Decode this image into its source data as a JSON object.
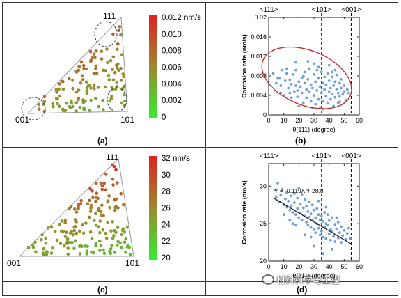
{
  "panels": {
    "a": {
      "caption": "(a)",
      "corners": {
        "top": "111",
        "left": "001",
        "right": "101"
      },
      "colorbar": {
        "unit": "nm/s",
        "ticks": [
          "0.012",
          "0.010",
          "0.008",
          "0.006",
          "0.004",
          "0.002",
          "0"
        ],
        "top_label": "0.012 nm/s"
      }
    },
    "b": {
      "caption": "(b)",
      "top_labels": [
        "<111>",
        "<101>",
        "<001>"
      ]
    },
    "c": {
      "caption": "(c)",
      "corners": {
        "top": "111",
        "left": "001",
        "right": "101"
      },
      "colorbar": {
        "unit": "nm/s",
        "ticks": [
          "32",
          "30",
          "28",
          "26",
          "24",
          "22",
          "20"
        ],
        "top_label": "32 nm/s"
      }
    },
    "d": {
      "caption": "(d)",
      "top_labels": [
        "<111>",
        "<101>",
        "<001>"
      ],
      "annotation": "Y = -0.119X + 28.8"
    }
  },
  "watermark": "材料科学与工程",
  "colors": {
    "low": "#33dd33",
    "high": "#dd2222",
    "point": "#6f9fd8",
    "ellipse": "#cc2222",
    "fit_line": "#111111"
  },
  "chart_data": [
    {
      "type": "scatter",
      "title": "",
      "xlabel": "θ(111) (degree)",
      "ylabel": "Corrosion rate (nm/s)",
      "xlim": [
        0,
        60
      ],
      "ylim": [
        0,
        0.02
      ],
      "xticks": [
        "0",
        "10",
        "20",
        "30",
        "40",
        "50",
        "60"
      ],
      "yticks": [
        "0",
        "0.004",
        "0.008",
        "0.012",
        "0.016",
        "0.02"
      ],
      "vlines": [
        35,
        54.7
      ],
      "grid": false,
      "points": [
        [
          3,
          0.0085
        ],
        [
          5,
          0.0065
        ],
        [
          6,
          0.0075
        ],
        [
          7,
          0.0075
        ],
        [
          8,
          0.006
        ],
        [
          9,
          0.0092
        ],
        [
          10,
          0.004
        ],
        [
          11,
          0.007
        ],
        [
          12,
          0.0085
        ],
        [
          13,
          0.0055
        ],
        [
          14,
          0.0045
        ],
        [
          14,
          0.0072
        ],
        [
          15,
          0.0063
        ],
        [
          16,
          0.0083
        ],
        [
          17,
          0.0048
        ],
        [
          18,
          0.006
        ],
        [
          18,
          0.0092
        ],
        [
          19,
          0.0037
        ],
        [
          20,
          0.0068
        ],
        [
          20,
          0.0018
        ],
        [
          21,
          0.0058
        ],
        [
          22,
          0.0076
        ],
        [
          22,
          0.0045
        ],
        [
          23,
          0.0025
        ],
        [
          24,
          0.0065
        ],
        [
          24,
          0.0088
        ],
        [
          25,
          0.0052
        ],
        [
          25,
          0.0035
        ],
        [
          26,
          0.0073
        ],
        [
          27,
          0.0048
        ],
        [
          27,
          0.0095
        ],
        [
          28,
          0.0028
        ],
        [
          28,
          0.0062
        ],
        [
          29,
          0.0055
        ],
        [
          30,
          0.0083
        ],
        [
          30,
          0.004
        ],
        [
          31,
          0.0022
        ],
        [
          31,
          0.0068
        ],
        [
          32,
          0.0092
        ],
        [
          32,
          0.005
        ],
        [
          33,
          0.0032
        ],
        [
          33,
          0.0075
        ],
        [
          34,
          0.0058
        ],
        [
          34,
          0.0015
        ],
        [
          35,
          0.0045
        ],
        [
          35,
          0.0088
        ],
        [
          36,
          0.0065
        ],
        [
          36,
          0.0028
        ],
        [
          37,
          0.0052
        ],
        [
          37,
          0.0078
        ],
        [
          38,
          0.0038
        ],
        [
          38,
          0.0062
        ],
        [
          39,
          0.0085
        ],
        [
          39,
          0.0025
        ],
        [
          40,
          0.0048
        ],
        [
          40,
          0.007
        ],
        [
          41,
          0.0055
        ],
        [
          41,
          0.0032
        ],
        [
          42,
          0.0078
        ],
        [
          42,
          0.0043
        ],
        [
          43,
          0.006
        ],
        [
          43,
          0.0018
        ],
        [
          44,
          0.0068
        ],
        [
          44,
          0.0036
        ],
        [
          45,
          0.0053
        ],
        [
          45,
          0.0082
        ],
        [
          46,
          0.0045
        ],
        [
          46,
          0.0025
        ],
        [
          47,
          0.0065
        ],
        [
          47,
          0.0038
        ],
        [
          48,
          0.0055
        ],
        [
          48,
          0.0073
        ],
        [
          49,
          0.0042
        ],
        [
          50,
          0.006
        ],
        [
          51,
          0.003
        ],
        [
          52,
          0.0052
        ],
        [
          53,
          0.0045
        ],
        [
          26,
          0.011
        ],
        [
          30,
          0.0105
        ],
        [
          33,
          0.0098
        ],
        [
          40,
          0.0102
        ],
        [
          44,
          0.0092
        ],
        [
          18,
          0.0108
        ],
        [
          15,
          0.0035
        ],
        [
          8,
          0.0045
        ],
        [
          12,
          0.0095
        ],
        [
          36,
          0.0012
        ],
        [
          29,
          0.0014
        ],
        [
          23,
          0.008
        ],
        [
          19,
          0.005
        ],
        [
          42,
          0.0088
        ],
        [
          47,
          0.0027
        ],
        [
          50,
          0.0048
        ]
      ]
    },
    {
      "type": "scatter",
      "title": "",
      "xlabel": "θ(111) (degree)",
      "ylabel": "Corrosion rate (nm/s)",
      "xlim": [
        0,
        60
      ],
      "ylim": [
        20,
        33
      ],
      "xticks": [
        "0",
        "10",
        "20",
        "30",
        "40",
        "50",
        "60"
      ],
      "yticks": [
        "20",
        "25",
        "30"
      ],
      "vlines": [
        35,
        54.7
      ],
      "grid": false,
      "fit": {
        "slope": -0.119,
        "intercept": 28.8,
        "x_range": [
          3,
          55
        ]
      },
      "points": [
        [
          4,
          29.5
        ],
        [
          5,
          28.6
        ],
        [
          6,
          30.4
        ],
        [
          7,
          27.9
        ],
        [
          8,
          28.8
        ],
        [
          9,
          29.6
        ],
        [
          10,
          27.5
        ],
        [
          11,
          28.3
        ],
        [
          12,
          29.1
        ],
        [
          12,
          27.2
        ],
        [
          13,
          28.0
        ],
        [
          14,
          26.8
        ],
        [
          15,
          28.7
        ],
        [
          15,
          27.4
        ],
        [
          16,
          26.5
        ],
        [
          17,
          29.0
        ],
        [
          17,
          27.8
        ],
        [
          18,
          26.2
        ],
        [
          19,
          28.4
        ],
        [
          19,
          27.0
        ],
        [
          20,
          25.8
        ],
        [
          21,
          27.6
        ],
        [
          21,
          26.4
        ],
        [
          22,
          28.9
        ],
        [
          22,
          25.5
        ],
        [
          23,
          27.1
        ],
        [
          24,
          26.0
        ],
        [
          24,
          28.2
        ],
        [
          25,
          25.2
        ],
        [
          25,
          27.3
        ],
        [
          26,
          26.6
        ],
        [
          26,
          24.8
        ],
        [
          27,
          27.9
        ],
        [
          27,
          25.9
        ],
        [
          28,
          26.3
        ],
        [
          28,
          24.5
        ],
        [
          29,
          27.5
        ],
        [
          29,
          25.5
        ],
        [
          30,
          26.8
        ],
        [
          30,
          24.2
        ],
        [
          31,
          25.8
        ],
        [
          31,
          23.8
        ],
        [
          32,
          27.0
        ],
        [
          32,
          25.0
        ],
        [
          33,
          26.2
        ],
        [
          33,
          24.4
        ],
        [
          34,
          25.5
        ],
        [
          34,
          23.5
        ],
        [
          35,
          26.0
        ],
        [
          35,
          24.0
        ],
        [
          36,
          25.3
        ],
        [
          36,
          23.2
        ],
        [
          37,
          26.5
        ],
        [
          37,
          24.6
        ],
        [
          38,
          25.0
        ],
        [
          38,
          23.0
        ],
        [
          39,
          24.8
        ],
        [
          39,
          26.2
        ],
        [
          40,
          23.6
        ],
        [
          40,
          25.4
        ],
        [
          41,
          24.2
        ],
        [
          41,
          22.8
        ],
        [
          42,
          25.8
        ],
        [
          42,
          24.0
        ],
        [
          43,
          23.3
        ],
        [
          44,
          24.9
        ],
        [
          44,
          22.6
        ],
        [
          45,
          24.3
        ],
        [
          46,
          23.1
        ],
        [
          46,
          25.2
        ],
        [
          47,
          23.8
        ],
        [
          48,
          22.5
        ],
        [
          48,
          24.6
        ],
        [
          49,
          23.4
        ],
        [
          50,
          24.1
        ],
        [
          51,
          22.9
        ],
        [
          52,
          23.7
        ],
        [
          53,
          24.4
        ],
        [
          54,
          23.0
        ],
        [
          10,
          26.2
        ],
        [
          14,
          25.5
        ],
        [
          18,
          24.8
        ],
        [
          24,
          23.5
        ],
        [
          36,
          21.0
        ],
        [
          30,
          22.0
        ],
        [
          26,
          29.5
        ],
        [
          33,
          28.0
        ],
        [
          45,
          25.8
        ],
        [
          20,
          29.7
        ],
        [
          38,
          27.2
        ],
        [
          42,
          21.6
        ],
        [
          28,
          23.2
        ],
        [
          16,
          25.0
        ]
      ]
    }
  ]
}
